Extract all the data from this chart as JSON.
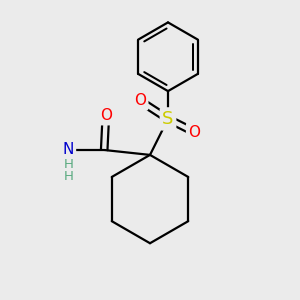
{
  "background_color": "#ebebeb",
  "bond_color": "#000000",
  "bond_width": 1.6,
  "atom_colors": {
    "O": "#ff0000",
    "N": "#0000cd",
    "S": "#cccc00",
    "H": "#5aaa80"
  },
  "font_size_atoms": 11,
  "font_size_H": 9.5,
  "scale": 1.0
}
